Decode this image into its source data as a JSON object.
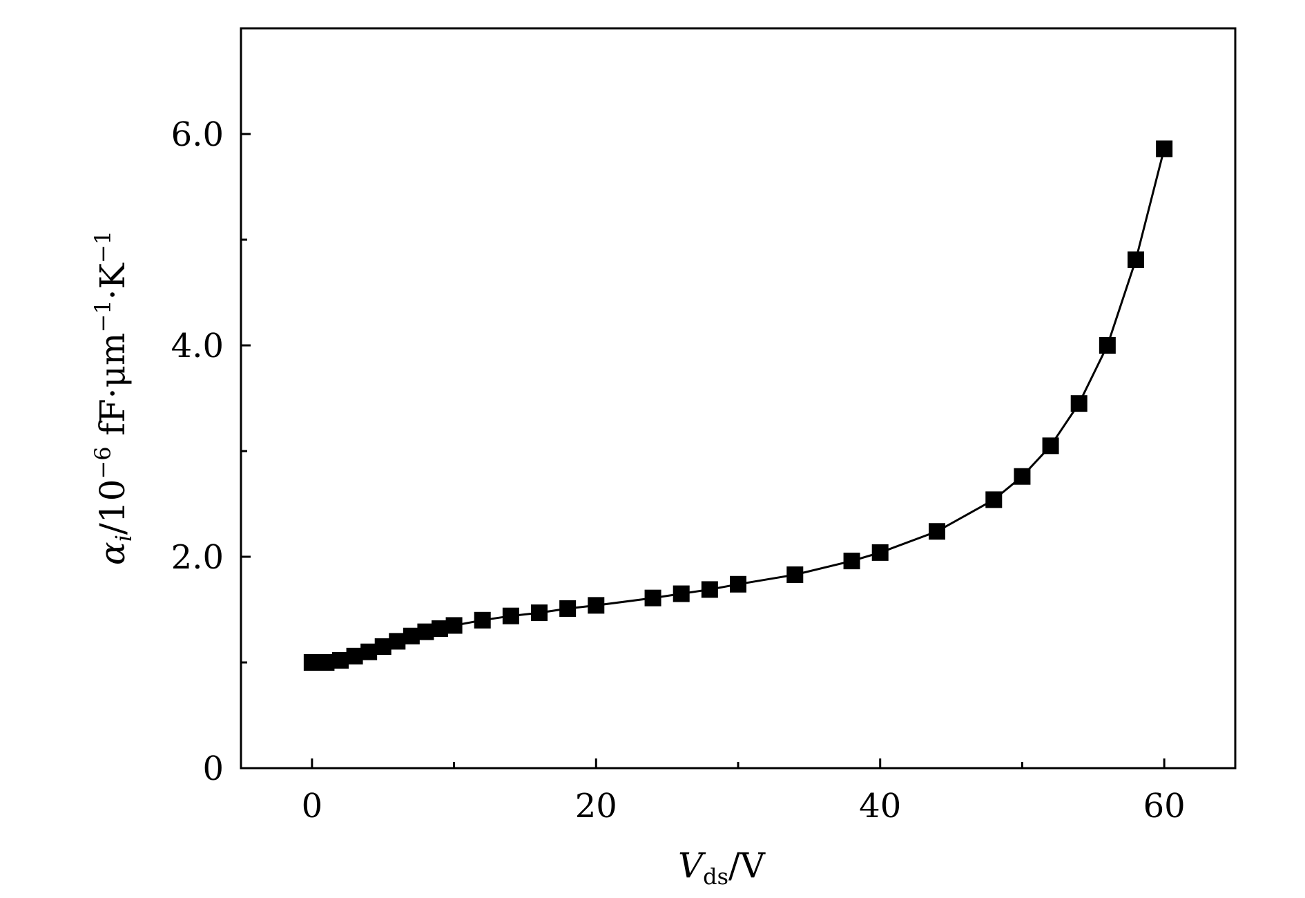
{
  "chart_data": {
    "type": "line",
    "title": "",
    "xlabel": {
      "var": "V",
      "sub": "ds",
      "unit": "/V"
    },
    "ylabel": {
      "var": "α",
      "sub": "i",
      "unit_prefix": "/10",
      "exp1": "−6",
      "unit_mid": " fF·μm",
      "exp2": "−1",
      "unit_mid2": "·K",
      "exp3": "−1"
    },
    "xlim": [
      -5,
      65
    ],
    "ylim": [
      0,
      7
    ],
    "xticks_major": [
      0,
      20,
      40,
      60
    ],
    "xtick_labels": [
      "0",
      "20",
      "40",
      "60"
    ],
    "xticks_minor": [
      10,
      30,
      50
    ],
    "yticks_major": [
      0,
      2,
      4,
      6
    ],
    "ytick_labels": [
      "0",
      "2.0",
      "4.0",
      "6.0"
    ],
    "yticks_minor": [
      1,
      3,
      5
    ],
    "grid": false,
    "marker": "square",
    "color": "#000000",
    "series": [
      {
        "x": [
          0,
          0.5,
          1,
          2,
          3,
          4,
          5,
          6,
          7,
          8,
          9,
          10,
          12,
          14,
          16,
          18,
          20,
          24,
          26,
          28,
          30,
          34,
          38,
          40,
          44,
          48,
          50,
          52,
          54,
          56,
          58,
          60
        ],
        "y": [
          1.0,
          1.0,
          1.0,
          1.02,
          1.06,
          1.1,
          1.15,
          1.2,
          1.25,
          1.29,
          1.32,
          1.35,
          1.4,
          1.44,
          1.47,
          1.51,
          1.54,
          1.61,
          1.65,
          1.69,
          1.74,
          1.83,
          1.96,
          2.04,
          2.24,
          2.54,
          2.76,
          3.05,
          3.45,
          4.0,
          4.81,
          5.86
        ]
      }
    ]
  }
}
